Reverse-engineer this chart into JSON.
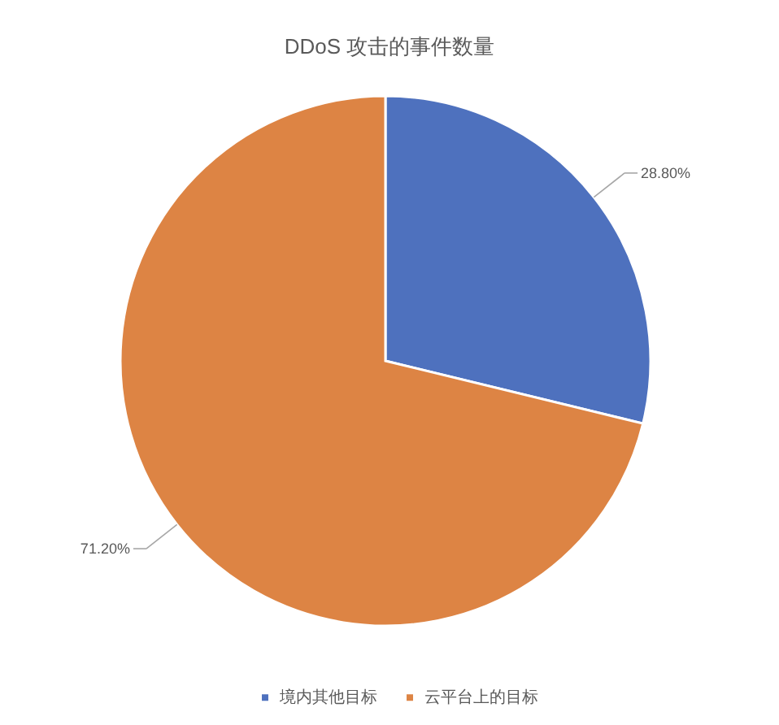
{
  "chart_data": {
    "type": "pie",
    "title": "DDoS 攻击的事件数量",
    "categories": [
      "境内其他目标",
      "云平台上的目标"
    ],
    "values": [
      28.8,
      71.2
    ],
    "colors": [
      "#4e71be",
      "#dd8444"
    ],
    "value_labels": [
      "28.80%",
      "71.20%"
    ],
    "legend": "bottom"
  }
}
